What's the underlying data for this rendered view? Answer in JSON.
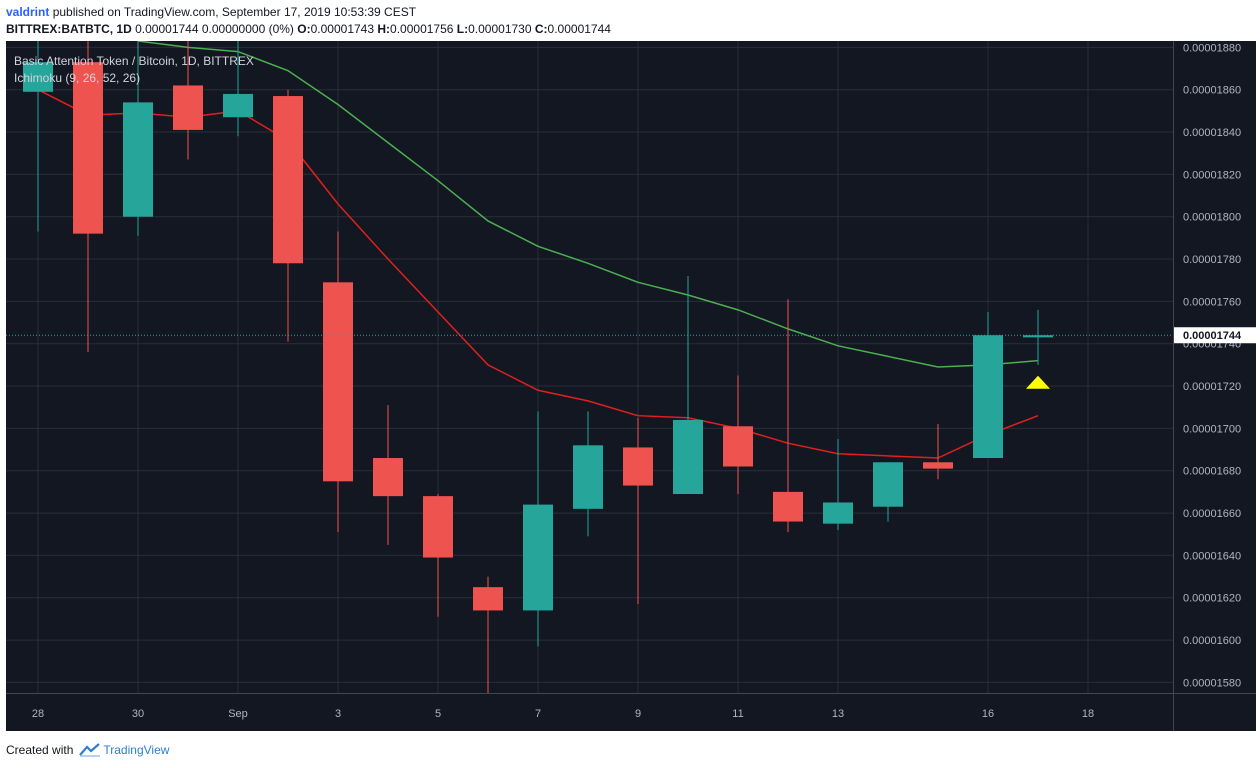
{
  "header": {
    "user": "valdrint",
    "published": "published on TradingView.com, September 17, 2019 10:53:39 CEST",
    "symbol": "BITTREX:BATBTC, 1D",
    "price_change": "0.00001744 0.00000000 (0%)",
    "o_label": "O:",
    "o_value": "0.00001743",
    "h_label": "H:",
    "h_value": "0.00001756",
    "l_label": "L:",
    "l_value": "0.00001730",
    "c_label": "C:",
    "c_value": "0.00001744"
  },
  "footer": {
    "created_with": "Created with",
    "brand": "TradingView",
    "logo_icon": "tradingview-logo-icon"
  },
  "colors": {
    "background": "#131722",
    "grid": "#2a2e39",
    "up": "#26a69a",
    "down": "#ef5350",
    "conversion_line": "#e0201e",
    "base_line": "#4caf50",
    "marker": "#ffff00",
    "axis_text": "#b2b5be",
    "price_label_bg": "#ffffff"
  },
  "chart_data": {
    "type": "candlestick",
    "title": "Basic Attention Token / Bitcoin, 1D, BITTREX",
    "indicator_label": "Ichimoku (9, 26, 52, 26)",
    "x_tick_labels": [
      "28",
      "30",
      "Sep",
      "3",
      "5",
      "7",
      "9",
      "11",
      "13",
      "16",
      "18"
    ],
    "y_tick_labels": [
      "0.00001580",
      "0.00001600",
      "0.00001620",
      "0.00001640",
      "0.00001660",
      "0.00001680",
      "0.00001700",
      "0.00001720",
      "0.00001740",
      "0.00001760",
      "0.00001780",
      "0.00001800",
      "0.00001820",
      "0.00001840",
      "0.00001860",
      "0.00001880"
    ],
    "ylim": [
      1.575e-05,
      1.883e-05
    ],
    "last_price": 1.744e-05,
    "last_price_label": "0.00001744",
    "candles": [
      {
        "date": "2019-08-28",
        "open": 1.859e-05,
        "high": 1.883e-05,
        "low": 1.793e-05,
        "close": 1.873e-05
      },
      {
        "date": "2019-08-29",
        "open": 1.873e-05,
        "high": 1.883e-05,
        "low": 1.736e-05,
        "close": 1.792e-05
      },
      {
        "date": "2019-08-30",
        "open": 1.8e-05,
        "high": 1.883e-05,
        "low": 1.791e-05,
        "close": 1.854e-05
      },
      {
        "date": "2019-08-31",
        "open": 1.862e-05,
        "high": 1.883e-05,
        "low": 1.827e-05,
        "close": 1.841e-05
      },
      {
        "date": "2019-09-01",
        "open": 1.847e-05,
        "high": 1.883e-05,
        "low": 1.838e-05,
        "close": 1.858e-05
      },
      {
        "date": "2019-09-02",
        "open": 1.857e-05,
        "high": 1.86e-05,
        "low": 1.741e-05,
        "close": 1.778e-05
      },
      {
        "date": "2019-09-03",
        "open": 1.769e-05,
        "high": 1.793e-05,
        "low": 1.651e-05,
        "close": 1.675e-05
      },
      {
        "date": "2019-09-04",
        "open": 1.686e-05,
        "high": 1.711e-05,
        "low": 1.645e-05,
        "close": 1.668e-05
      },
      {
        "date": "2019-09-05",
        "open": 1.668e-05,
        "high": 1.669e-05,
        "low": 1.611e-05,
        "close": 1.639e-05
      },
      {
        "date": "2019-09-06",
        "open": 1.625e-05,
        "high": 1.63e-05,
        "low": 1.575e-05,
        "close": 1.614e-05
      },
      {
        "date": "2019-09-07",
        "open": 1.614e-05,
        "high": 1.708e-05,
        "low": 1.597e-05,
        "close": 1.664e-05
      },
      {
        "date": "2019-09-08",
        "open": 1.662e-05,
        "high": 1.708e-05,
        "low": 1.649e-05,
        "close": 1.692e-05
      },
      {
        "date": "2019-09-09",
        "open": 1.691e-05,
        "high": 1.705e-05,
        "low": 1.617e-05,
        "close": 1.673e-05
      },
      {
        "date": "2019-09-10",
        "open": 1.669e-05,
        "high": 1.772e-05,
        "low": 1.669e-05,
        "close": 1.704e-05
      },
      {
        "date": "2019-09-11",
        "open": 1.701e-05,
        "high": 1.725e-05,
        "low": 1.669e-05,
        "close": 1.682e-05
      },
      {
        "date": "2019-09-12",
        "open": 1.67e-05,
        "high": 1.761e-05,
        "low": 1.651e-05,
        "close": 1.656e-05
      },
      {
        "date": "2019-09-13",
        "open": 1.655e-05,
        "high": 1.695e-05,
        "low": 1.652e-05,
        "close": 1.665e-05
      },
      {
        "date": "2019-09-14",
        "open": 1.663e-05,
        "high": 1.684e-05,
        "low": 1.656e-05,
        "close": 1.684e-05
      },
      {
        "date": "2019-09-15",
        "open": 1.684e-05,
        "high": 1.702e-05,
        "low": 1.676e-05,
        "close": 1.681e-05
      },
      {
        "date": "2019-09-16",
        "open": 1.686e-05,
        "high": 1.755e-05,
        "low": 1.686e-05,
        "close": 1.744e-05
      },
      {
        "date": "2019-09-17",
        "open": 1.743e-05,
        "high": 1.756e-05,
        "low": 1.73e-05,
        "close": 1.744e-05
      }
    ],
    "series": [
      {
        "name": "Conversion Line",
        "dates": [
          "2019-08-28",
          "2019-08-29",
          "2019-08-30",
          "2019-08-31",
          "2019-09-01",
          "2019-09-02",
          "2019-09-03",
          "2019-09-04",
          "2019-09-05",
          "2019-09-06",
          "2019-09-07",
          "2019-09-08",
          "2019-09-09",
          "2019-09-10",
          "2019-09-11",
          "2019-09-12",
          "2019-09-13",
          "2019-09-14",
          "2019-09-15",
          "2019-09-16",
          "2019-09-17"
        ],
        "values": [
          1.86e-05,
          1.848e-05,
          1.849e-05,
          1.847e-05,
          1.85e-05,
          1.836e-05,
          1.806e-05,
          1.78e-05,
          1.755e-05,
          1.73e-05,
          1.718e-05,
          1.713e-05,
          1.706e-05,
          1.705e-05,
          1.7e-05,
          1.693e-05,
          1.688e-05,
          1.687e-05,
          1.686e-05,
          1.697e-05,
          1.706e-05
        ]
      },
      {
        "name": "Base Line",
        "dates": [
          "2019-08-30",
          "2019-08-31",
          "2019-09-01",
          "2019-09-02",
          "2019-09-03",
          "2019-09-04",
          "2019-09-05",
          "2019-09-06",
          "2019-09-07",
          "2019-09-08",
          "2019-09-09",
          "2019-09-10",
          "2019-09-11",
          "2019-09-12",
          "2019-09-13",
          "2019-09-14",
          "2019-09-15",
          "2019-09-16",
          "2019-09-17"
        ],
        "values": [
          1.883e-05,
          1.88e-05,
          1.878e-05,
          1.869e-05,
          1.853e-05,
          1.835e-05,
          1.817e-05,
          1.798e-05,
          1.786e-05,
          1.778e-05,
          1.769e-05,
          1.763e-05,
          1.756e-05,
          1.747e-05,
          1.739e-05,
          1.734e-05,
          1.729e-05,
          1.73e-05,
          1.732e-05
        ]
      }
    ],
    "annotations": [
      {
        "type": "triangle-up",
        "date": "2019-09-17",
        "value": 1.723e-05
      }
    ]
  }
}
